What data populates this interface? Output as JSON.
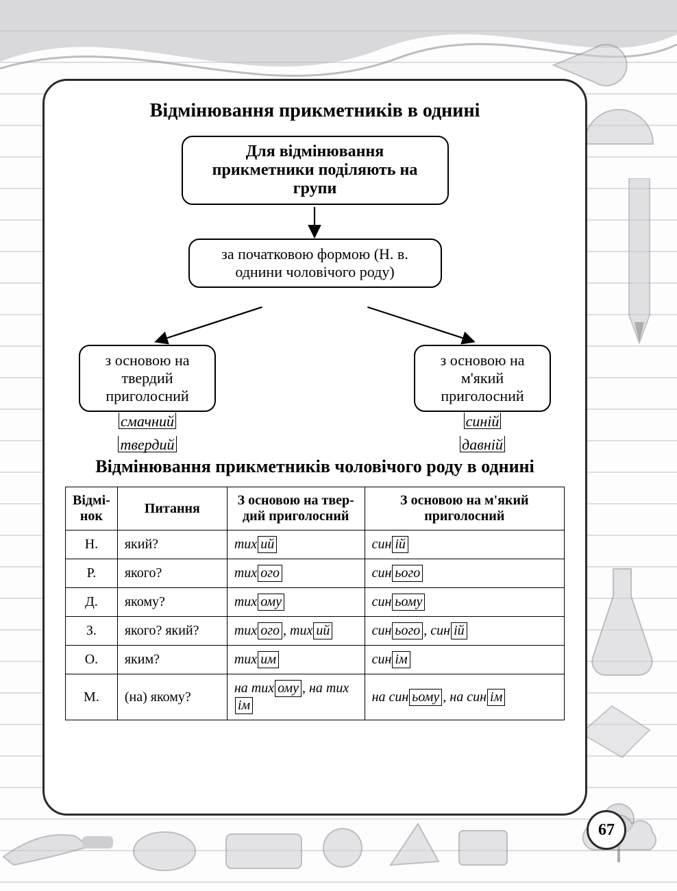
{
  "page_number": "67",
  "card": {
    "title1": "Відмінювання прикметників в однині",
    "diagram": {
      "type": "tree",
      "nodes": {
        "top": "Для відмінювання прикметники поділяють на групи",
        "mid": "за початковою формою (Н. в. однини чоловічого роду)",
        "left": "з основою на твердий приголосний",
        "right": "з основою на м'який приголосний"
      },
      "examples_left": [
        "смачний",
        "твердий"
      ],
      "examples_right": [
        "синій",
        "давній"
      ],
      "node_border_color": "#000000",
      "node_bg": "#ffffff",
      "node_radius": 16,
      "arrow_color": "#000000"
    },
    "title2": "Відмінювання прикметників чоловічого роду в однині",
    "table": {
      "columns": [
        "Відмі-\nнок",
        "Питання",
        "З основою на твер-\nдий приголосний",
        "З основою на м'який приголосний"
      ],
      "rows": [
        {
          "case": "Н.",
          "q": "який?",
          "hard": [
            [
              "тих",
              "ий"
            ]
          ],
          "soft": [
            [
              "син",
              "ій"
            ]
          ]
        },
        {
          "case": "Р.",
          "q": "якого?",
          "hard": [
            [
              "тих",
              "ого"
            ]
          ],
          "soft": [
            [
              "син",
              "ього"
            ]
          ]
        },
        {
          "case": "Д.",
          "q": "якому?",
          "hard": [
            [
              "тих",
              "ому"
            ]
          ],
          "soft": [
            [
              "син",
              "ьому"
            ]
          ]
        },
        {
          "case": "З.",
          "q": "якого? який?",
          "hard": [
            [
              "тих",
              "ого"
            ],
            [
              "тих",
              "ий"
            ]
          ],
          "soft": [
            [
              "син",
              "ього"
            ],
            [
              "син",
              "ій"
            ]
          ]
        },
        {
          "case": "О.",
          "q": "яким?",
          "hard": [
            [
              "тих",
              "им"
            ]
          ],
          "soft": [
            [
              "син",
              "ім"
            ]
          ]
        },
        {
          "case": "М.",
          "q": "(на) якому?",
          "hard_prefix": "на ",
          "hard": [
            [
              "тих",
              "ому"
            ],
            [
              "тих",
              "ім"
            ]
          ],
          "soft_prefix": "на ",
          "soft": [
            [
              "син",
              "ьому"
            ],
            [
              "син",
              "ім"
            ]
          ]
        }
      ],
      "border_color": "#000000",
      "header_fontsize": 20,
      "cell_fontsize": 20
    },
    "card_border_color": "#2a2a2a",
    "card_bg": "#ffffff",
    "card_radius": 36
  },
  "background": {
    "line_color": "#c8c8d0",
    "line_spacing": 46,
    "deco_color": "#b5b5bb"
  }
}
